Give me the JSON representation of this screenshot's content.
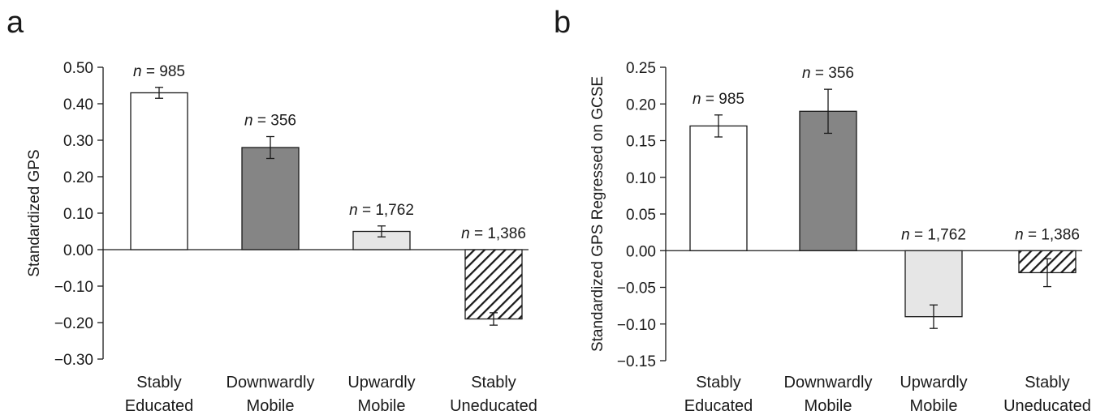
{
  "chart_data": [
    {
      "type": "bar",
      "panel": "a",
      "ylabel": "Standardized GPS",
      "ylim": [
        -0.3,
        0.5
      ],
      "yticks": [
        "0.50",
        "0.40",
        "0.30",
        "0.20",
        "0.10",
        "0.00",
        "−0.10",
        "−0.20",
        "−0.30"
      ],
      "ytick_values": [
        0.5,
        0.4,
        0.3,
        0.2,
        0.1,
        0.0,
        -0.1,
        -0.2,
        -0.3
      ],
      "categories": [
        [
          "Stably",
          "Educated"
        ],
        [
          "Downwardly",
          "Mobile"
        ],
        [
          "Upwardly",
          "Mobile"
        ],
        [
          "Stably",
          "Uneducated"
        ]
      ],
      "values": [
        0.43,
        0.28,
        0.05,
        -0.19
      ],
      "errors": [
        0.015,
        0.03,
        0.015,
        0.017
      ],
      "n_labels": [
        "n = 985",
        "n = 356",
        "n = 1,762",
        "n = 1,386"
      ],
      "grid": false
    },
    {
      "type": "bar",
      "panel": "b",
      "ylabel": "Standardized GPS Regressed on GCSE",
      "ylim": [
        -0.15,
        0.25
      ],
      "yticks": [
        "0.25",
        "0.20",
        "0.15",
        "0.10",
        "0.05",
        "0.00",
        "−0.05",
        "−0.10",
        "−0.15"
      ],
      "ytick_values": [
        0.25,
        0.2,
        0.15,
        0.1,
        0.05,
        0.0,
        -0.05,
        -0.1,
        -0.15
      ],
      "categories": [
        [
          "Stably",
          "Educated"
        ],
        [
          "Downwardly",
          "Mobile"
        ],
        [
          "Upwardly",
          "Mobile"
        ],
        [
          "Stably",
          "Uneducated"
        ]
      ],
      "values": [
        0.17,
        0.19,
        -0.09,
        -0.03
      ],
      "errors": [
        0.015,
        0.03,
        0.016,
        0.019
      ],
      "n_labels": [
        "n = 985",
        "n = 356",
        "n = 1,762",
        "n = 1,386"
      ],
      "grid": false
    }
  ],
  "bar_styles": [
    "white",
    "dark-gray",
    "light-gray",
    "hatched"
  ],
  "colors": {
    "dark_gray": "#858585",
    "light_gray": "#e6e6e6",
    "white": "#ffffff",
    "ink": "#1a1a1a"
  }
}
